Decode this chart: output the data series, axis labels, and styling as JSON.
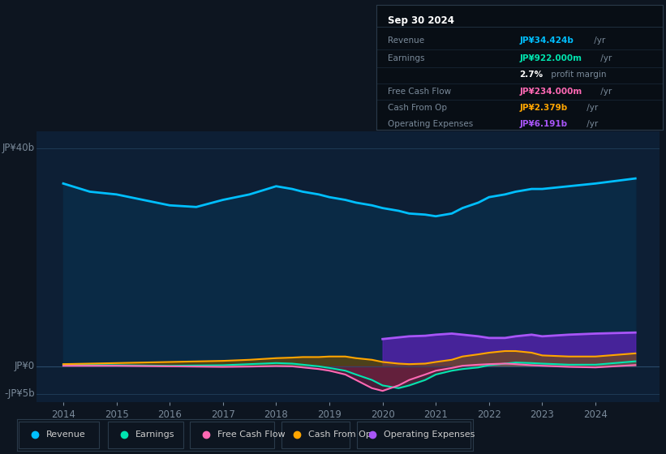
{
  "background_color": "#0d1520",
  "plot_bg_color": "#0d1f35",
  "years": [
    2014.0,
    2014.5,
    2015.0,
    2015.5,
    2016.0,
    2016.5,
    2017.0,
    2017.5,
    2018.0,
    2018.3,
    2018.5,
    2018.8,
    2019.0,
    2019.3,
    2019.5,
    2019.8,
    2020.0,
    2020.3,
    2020.5,
    2020.8,
    2021.0,
    2021.3,
    2021.5,
    2021.8,
    2022.0,
    2022.3,
    2022.5,
    2022.8,
    2023.0,
    2023.5,
    2024.0,
    2024.75
  ],
  "revenue": [
    33.5,
    32.0,
    31.5,
    30.5,
    29.5,
    29.2,
    30.5,
    31.5,
    33.0,
    32.5,
    32.0,
    31.5,
    31.0,
    30.5,
    30.0,
    29.5,
    29.0,
    28.5,
    28.0,
    27.8,
    27.5,
    28.0,
    29.0,
    30.0,
    31.0,
    31.5,
    32.0,
    32.5,
    32.5,
    33.0,
    33.5,
    34.424
  ],
  "earnings": [
    0.3,
    0.25,
    0.2,
    0.15,
    0.1,
    0.15,
    0.2,
    0.4,
    0.6,
    0.5,
    0.3,
    0.0,
    -0.3,
    -0.8,
    -1.5,
    -2.5,
    -3.5,
    -4.0,
    -3.5,
    -2.5,
    -1.5,
    -0.8,
    -0.5,
    -0.2,
    0.2,
    0.5,
    0.7,
    0.6,
    0.5,
    0.3,
    0.3,
    0.922
  ],
  "free_cash_flow": [
    0.1,
    0.1,
    0.1,
    0.05,
    0.0,
    -0.05,
    -0.1,
    -0.05,
    0.05,
    0.0,
    -0.2,
    -0.5,
    -0.8,
    -1.5,
    -2.5,
    -4.0,
    -4.5,
    -3.5,
    -2.5,
    -1.5,
    -0.8,
    -0.3,
    0.1,
    0.3,
    0.4,
    0.5,
    0.4,
    0.2,
    0.1,
    -0.1,
    -0.2,
    0.234
  ],
  "cash_from_op": [
    0.4,
    0.5,
    0.6,
    0.7,
    0.8,
    0.9,
    1.0,
    1.2,
    1.5,
    1.6,
    1.7,
    1.7,
    1.8,
    1.8,
    1.5,
    1.2,
    0.8,
    0.5,
    0.4,
    0.5,
    0.8,
    1.2,
    1.8,
    2.2,
    2.5,
    2.8,
    2.8,
    2.5,
    2.0,
    1.8,
    1.8,
    2.379
  ],
  "operating_expenses": [
    0.0,
    0.0,
    0.0,
    0.0,
    0.0,
    0.0,
    0.0,
    0.0,
    0.0,
    0.0,
    0.0,
    0.0,
    0.0,
    0.0,
    0.0,
    0.0,
    5.0,
    5.3,
    5.5,
    5.6,
    5.8,
    6.0,
    5.8,
    5.5,
    5.2,
    5.2,
    5.5,
    5.8,
    5.5,
    5.8,
    6.0,
    6.191
  ],
  "revenue_color": "#00bfff",
  "earnings_color": "#00e5b0",
  "free_cash_flow_color": "#ff69b4",
  "cash_from_op_color": "#ffa500",
  "operating_expenses_color": "#a855f7",
  "ylim": [
    -6.5,
    43
  ],
  "xtick_years": [
    2014,
    2015,
    2016,
    2017,
    2018,
    2019,
    2020,
    2021,
    2022,
    2023,
    2024
  ],
  "legend_items": [
    {
      "label": "Revenue",
      "color": "#00bfff"
    },
    {
      "label": "Earnings",
      "color": "#00e5b0"
    },
    {
      "label": "Free Cash Flow",
      "color": "#ff69b4"
    },
    {
      "label": "Cash From Op",
      "color": "#ffa500"
    },
    {
      "label": "Operating Expenses",
      "color": "#a855f7"
    }
  ],
  "info_box": {
    "date": "Sep 30 2024",
    "rows": [
      {
        "label": "Revenue",
        "value": "JP¥34.424b",
        "unit": "/yr",
        "color": "#00bfff"
      },
      {
        "label": "Earnings",
        "value": "JP¥922.000m",
        "unit": "/yr",
        "color": "#00e5b0"
      },
      {
        "label": "",
        "value": "2.7%",
        "unit": "profit margin",
        "color": "#ffffff"
      },
      {
        "label": "Free Cash Flow",
        "value": "JP¥234.000m",
        "unit": "/yr",
        "color": "#ff69b4"
      },
      {
        "label": "Cash From Op",
        "value": "JP¥2.379b",
        "unit": "/yr",
        "color": "#ffa500"
      },
      {
        "label": "Operating Expenses",
        "value": "JP¥6.191b",
        "unit": "/yr",
        "color": "#a855f7"
      }
    ]
  }
}
